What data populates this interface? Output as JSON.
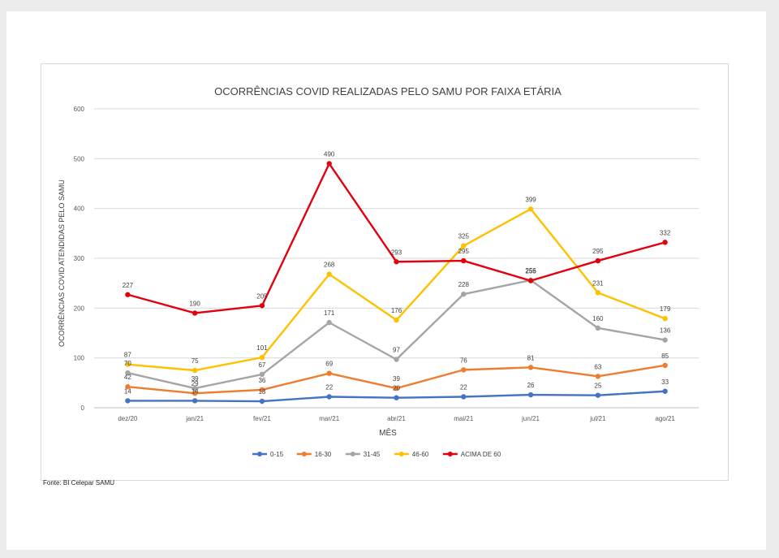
{
  "source_note": "Fonte: BI Celepar SAMU",
  "chart_data": {
    "type": "line",
    "title": "OCORRÊNCIAS COVID REALIZADAS PELO SAMU POR FAIXA ETÁRIA",
    "xlabel": "MÊS",
    "ylabel": "OCORRÊNCIAS COVID ATENDIDAS PELO SAMU",
    "ylim": [
      0,
      600
    ],
    "yticks": [
      "0",
      "100",
      "200",
      "300",
      "400",
      "500",
      "600"
    ],
    "categories": [
      "dez/20",
      "jan/21",
      "fev/21",
      "mar/21",
      "abr/21",
      "mai/21",
      "jun/21",
      "jul/21",
      "ago/21"
    ],
    "legend_position": "bottom",
    "grid": true,
    "series": [
      {
        "name": "0-15",
        "color": "#4472C4",
        "values": [
          14,
          14,
          13,
          22,
          20,
          22,
          26,
          25,
          33
        ]
      },
      {
        "name": "16-30",
        "color": "#ED7D31",
        "values": [
          42,
          29,
          36,
          69,
          39,
          76,
          81,
          63,
          85
        ]
      },
      {
        "name": "31-45",
        "color": "#A5A5A5",
        "values": [
          70,
          39,
          67,
          171,
          97,
          228,
          256,
          160,
          136
        ]
      },
      {
        "name": "46-60",
        "color": "#FFC000",
        "values": [
          87,
          75,
          101,
          268,
          176,
          325,
          399,
          231,
          179
        ]
      },
      {
        "name": "ACIMA DE 60",
        "color": "#E3000F",
        "values": [
          227,
          190,
          205,
          490,
          293,
          295,
          255,
          295,
          332
        ]
      }
    ],
    "data_labels": [
      [
        "14",
        "14",
        "13",
        "22",
        "20",
        "22",
        "26",
        "25",
        "33"
      ],
      [
        "42",
        "29",
        "36",
        "69",
        "39",
        "76",
        "81",
        "63",
        "85"
      ],
      [
        "70",
        "39",
        "67",
        "171",
        "97",
        "228",
        "256",
        "160",
        "136"
      ],
      [
        "87",
        "75",
        "101",
        "268",
        "176",
        "325",
        "399",
        "231",
        "179"
      ],
      [
        "227",
        "190",
        "205",
        "490",
        "293",
        "295",
        "255",
        "295",
        "332"
      ]
    ]
  }
}
